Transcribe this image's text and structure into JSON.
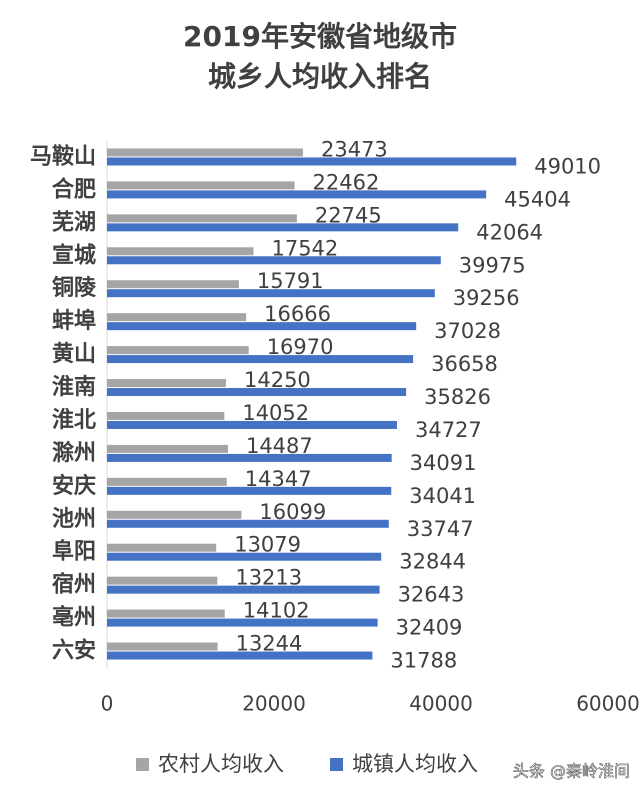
{
  "chart_data": {
    "type": "hbar",
    "title": [
      "2019年安徽省地级市",
      "城乡人均收入排名"
    ],
    "categories": [
      "马鞍山",
      "合肥",
      "芜湖",
      "宣城",
      "铜陵",
      "蚌埠",
      "黄山",
      "淮南",
      "淮北",
      "滁州",
      "安庆",
      "池州",
      "阜阳",
      "宿州",
      "亳州",
      "六安"
    ],
    "series": [
      {
        "name": "农村人均收入",
        "color": "#a5a5a5",
        "values": [
          23473,
          22462,
          22745,
          17542,
          15791,
          16666,
          16970,
          14250,
          14052,
          14487,
          14347,
          16099,
          13079,
          13213,
          14102,
          13244
        ]
      },
      {
        "name": "城镇人均收入",
        "color": "#4472c4",
        "values": [
          49010,
          45404,
          42064,
          39975,
          39256,
          37028,
          36658,
          35826,
          34727,
          34091,
          34041,
          33747,
          32844,
          32643,
          32409,
          31788
        ]
      }
    ],
    "xlim": [
      0,
      60000
    ],
    "xticks": [
      0,
      20000,
      40000,
      60000
    ],
    "watermark": "头条 @秦岭淮间"
  }
}
